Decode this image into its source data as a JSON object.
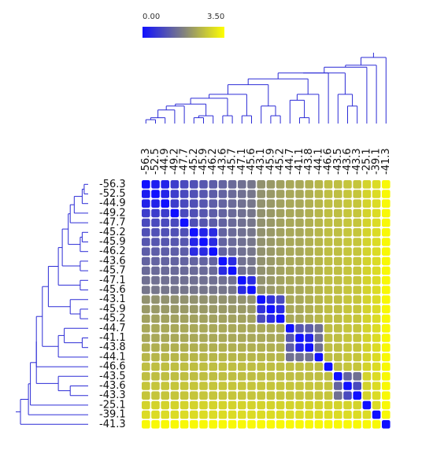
{
  "legend": {
    "min_label": "0.00",
    "max_label": "3.50",
    "color_low": "#1010ff",
    "color_mid": "#808080",
    "color_high": "#ffff00"
  },
  "chart_data": {
    "type": "heatmap",
    "title": "",
    "xlabel": "",
    "ylabel": "",
    "value_range": [
      0.0,
      3.5
    ],
    "dendrograms": true,
    "labels": [
      "-56.3",
      "-52.5",
      "-44.9",
      "-49.2",
      "-47.7",
      "-45.2",
      "-45.9",
      "-46.2",
      "-43.6",
      "-45.7",
      "-47.1",
      "-45.6",
      "-43.1",
      "-45.9",
      "-45.2",
      "-44.7",
      "-41.1",
      "-43.8",
      "-44.1",
      "-46.6",
      "-43.5",
      "-43.6",
      "-43.3",
      "-25.1",
      "-39.1",
      "-41.3"
    ],
    "values": [
      [
        0.0,
        0.2,
        0.3,
        0.7,
        0.9,
        1.0,
        1.1,
        1.2,
        1.3,
        1.4,
        1.5,
        1.6,
        2.0,
        2.1,
        2.2,
        2.3,
        2.3,
        2.4,
        2.5,
        2.6,
        2.6,
        2.7,
        2.7,
        2.9,
        3.0,
        3.4
      ],
      [
        0.2,
        0.0,
        0.3,
        0.7,
        0.9,
        1.0,
        1.1,
        1.2,
        1.3,
        1.4,
        1.5,
        1.6,
        2.0,
        2.1,
        2.2,
        2.3,
        2.3,
        2.4,
        2.5,
        2.6,
        2.6,
        2.7,
        2.7,
        2.9,
        3.0,
        3.4
      ],
      [
        0.3,
        0.3,
        0.0,
        0.7,
        0.9,
        1.0,
        1.1,
        1.2,
        1.3,
        1.4,
        1.5,
        1.6,
        2.0,
        2.1,
        2.2,
        2.3,
        2.3,
        2.4,
        2.5,
        2.6,
        2.6,
        2.7,
        2.7,
        2.9,
        3.0,
        3.4
      ],
      [
        0.7,
        0.7,
        0.7,
        0.0,
        0.9,
        1.0,
        1.1,
        1.2,
        1.3,
        1.4,
        1.5,
        1.6,
        2.0,
        2.1,
        2.2,
        2.3,
        2.3,
        2.4,
        2.5,
        2.6,
        2.6,
        2.7,
        2.7,
        2.9,
        3.0,
        3.4
      ],
      [
        0.9,
        0.9,
        0.9,
        0.9,
        0.0,
        1.0,
        1.1,
        1.2,
        1.3,
        1.4,
        1.5,
        1.6,
        2.0,
        2.1,
        2.2,
        2.3,
        2.3,
        2.4,
        2.5,
        2.6,
        2.6,
        2.7,
        2.7,
        2.9,
        3.0,
        3.4
      ],
      [
        1.0,
        1.0,
        1.0,
        1.0,
        1.0,
        0.0,
        0.3,
        0.4,
        1.3,
        1.4,
        1.5,
        1.6,
        2.0,
        2.1,
        2.2,
        2.3,
        2.3,
        2.4,
        2.5,
        2.6,
        2.6,
        2.7,
        2.7,
        2.9,
        3.0,
        3.4
      ],
      [
        1.1,
        1.1,
        1.1,
        1.1,
        1.1,
        0.3,
        0.0,
        0.4,
        1.3,
        1.4,
        1.5,
        1.6,
        2.0,
        2.1,
        2.2,
        2.3,
        2.3,
        2.4,
        2.5,
        2.6,
        2.6,
        2.7,
        2.7,
        2.9,
        3.0,
        3.4
      ],
      [
        1.2,
        1.2,
        1.2,
        1.2,
        1.2,
        0.4,
        0.4,
        0.0,
        1.3,
        1.4,
        1.5,
        1.6,
        2.0,
        2.1,
        2.2,
        2.3,
        2.3,
        2.4,
        2.5,
        2.6,
        2.6,
        2.7,
        2.7,
        2.9,
        3.0,
        3.4
      ],
      [
        1.3,
        1.3,
        1.3,
        1.3,
        1.3,
        1.3,
        1.3,
        1.3,
        0.0,
        0.4,
        1.5,
        1.6,
        2.0,
        2.1,
        2.2,
        2.3,
        2.3,
        2.4,
        2.5,
        2.6,
        2.6,
        2.7,
        2.7,
        2.9,
        3.0,
        3.4
      ],
      [
        1.4,
        1.4,
        1.4,
        1.4,
        1.4,
        1.4,
        1.4,
        1.4,
        0.4,
        0.0,
        1.5,
        1.6,
        2.0,
        2.1,
        2.2,
        2.3,
        2.3,
        2.4,
        2.5,
        2.6,
        2.6,
        2.7,
        2.7,
        2.9,
        3.0,
        3.4
      ],
      [
        1.5,
        1.5,
        1.5,
        1.5,
        1.5,
        1.5,
        1.5,
        1.5,
        1.5,
        1.5,
        0.0,
        0.4,
        2.0,
        2.1,
        2.2,
        2.3,
        2.3,
        2.4,
        2.5,
        2.6,
        2.6,
        2.7,
        2.7,
        2.9,
        3.0,
        3.4
      ],
      [
        1.6,
        1.6,
        1.6,
        1.6,
        1.6,
        1.6,
        1.6,
        1.6,
        1.6,
        1.6,
        0.4,
        0.0,
        2.0,
        2.1,
        2.2,
        2.3,
        2.3,
        2.4,
        2.5,
        2.6,
        2.6,
        2.7,
        2.7,
        2.9,
        3.0,
        3.4
      ],
      [
        2.0,
        2.0,
        2.0,
        2.0,
        2.0,
        2.0,
        2.0,
        2.0,
        2.0,
        2.0,
        2.0,
        2.0,
        0.0,
        0.5,
        0.9,
        2.3,
        2.3,
        2.4,
        2.5,
        2.6,
        2.6,
        2.7,
        2.7,
        2.9,
        3.0,
        3.4
      ],
      [
        2.1,
        2.1,
        2.1,
        2.1,
        2.1,
        2.1,
        2.1,
        2.1,
        2.1,
        2.1,
        2.1,
        2.1,
        0.5,
        0.0,
        0.4,
        2.3,
        2.3,
        2.4,
        2.5,
        2.6,
        2.6,
        2.7,
        2.7,
        2.9,
        3.0,
        3.4
      ],
      [
        2.2,
        2.2,
        2.2,
        2.2,
        2.2,
        2.2,
        2.2,
        2.2,
        2.2,
        2.2,
        2.2,
        2.2,
        0.9,
        0.4,
        0.0,
        2.3,
        2.3,
        2.4,
        2.5,
        2.6,
        2.6,
        2.7,
        2.7,
        2.9,
        3.0,
        3.4
      ],
      [
        2.3,
        2.3,
        2.3,
        2.3,
        2.3,
        2.3,
        2.3,
        2.3,
        2.3,
        2.3,
        2.3,
        2.3,
        2.3,
        2.3,
        2.3,
        0.0,
        1.1,
        1.2,
        1.5,
        2.6,
        2.6,
        2.7,
        2.7,
        2.9,
        3.0,
        3.4
      ],
      [
        2.3,
        2.3,
        2.3,
        2.3,
        2.3,
        2.3,
        2.3,
        2.3,
        2.3,
        2.3,
        2.3,
        2.3,
        2.3,
        2.3,
        2.3,
        1.1,
        0.0,
        0.3,
        1.5,
        2.6,
        2.6,
        2.7,
        2.7,
        2.9,
        3.0,
        3.4
      ],
      [
        2.4,
        2.4,
        2.4,
        2.4,
        2.4,
        2.4,
        2.4,
        2.4,
        2.4,
        2.4,
        2.4,
        2.4,
        2.4,
        2.4,
        2.4,
        1.2,
        0.3,
        0.0,
        1.5,
        2.6,
        2.6,
        2.7,
        2.7,
        2.9,
        3.0,
        3.4
      ],
      [
        2.5,
        2.5,
        2.5,
        2.5,
        2.5,
        2.5,
        2.5,
        2.5,
        2.5,
        2.5,
        2.5,
        2.5,
        2.5,
        2.5,
        2.5,
        1.5,
        1.5,
        1.5,
        0.0,
        2.6,
        2.6,
        2.7,
        2.7,
        2.9,
        3.0,
        3.4
      ],
      [
        2.6,
        2.6,
        2.6,
        2.6,
        2.6,
        2.6,
        2.6,
        2.6,
        2.6,
        2.6,
        2.6,
        2.6,
        2.6,
        2.6,
        2.6,
        2.6,
        2.6,
        2.6,
        2.6,
        0.0,
        2.6,
        2.7,
        2.7,
        2.9,
        3.0,
        3.4
      ],
      [
        2.6,
        2.6,
        2.6,
        2.6,
        2.6,
        2.6,
        2.6,
        2.6,
        2.6,
        2.6,
        2.6,
        2.6,
        2.6,
        2.6,
        2.6,
        2.6,
        2.6,
        2.6,
        2.6,
        2.6,
        0.0,
        1.3,
        1.5,
        2.9,
        3.0,
        3.4
      ],
      [
        2.7,
        2.7,
        2.7,
        2.7,
        2.7,
        2.7,
        2.7,
        2.7,
        2.7,
        2.7,
        2.7,
        2.7,
        2.7,
        2.7,
        2.7,
        2.7,
        2.7,
        2.7,
        2.7,
        2.7,
        1.3,
        0.0,
        0.9,
        2.9,
        3.0,
        3.4
      ],
      [
        2.7,
        2.7,
        2.7,
        2.7,
        2.7,
        2.7,
        2.7,
        2.7,
        2.7,
        2.7,
        2.7,
        2.7,
        2.7,
        2.7,
        2.7,
        2.7,
        2.7,
        2.7,
        2.7,
        2.7,
        1.5,
        0.9,
        0.0,
        2.9,
        3.0,
        3.4
      ],
      [
        2.9,
        2.9,
        2.9,
        2.9,
        2.9,
        2.9,
        2.9,
        2.9,
        2.9,
        2.9,
        2.9,
        2.9,
        2.9,
        2.9,
        2.9,
        2.9,
        2.9,
        2.9,
        2.9,
        2.9,
        2.9,
        2.9,
        2.9,
        0.0,
        3.0,
        3.4
      ],
      [
        3.0,
        3.0,
        3.0,
        3.0,
        3.0,
        3.0,
        3.0,
        3.0,
        3.0,
        3.0,
        3.0,
        3.0,
        3.0,
        3.0,
        3.0,
        3.0,
        3.0,
        3.0,
        3.0,
        3.0,
        3.0,
        3.0,
        3.0,
        3.0,
        0.0,
        3.4
      ],
      [
        3.4,
        3.4,
        3.4,
        3.4,
        3.4,
        3.4,
        3.4,
        3.4,
        3.4,
        3.4,
        3.4,
        3.4,
        3.4,
        3.4,
        3.4,
        3.4,
        3.4,
        3.4,
        3.4,
        3.4,
        3.4,
        3.4,
        3.4,
        3.4,
        3.4,
        0.0
      ]
    ],
    "dendrogram": {
      "merges": [
        [
          0,
          1,
          0.2
        ],
        [
          26,
          2,
          0.3
        ],
        [
          27,
          3,
          0.7
        ],
        [
          28,
          4,
          0.9
        ],
        [
          5,
          6,
          0.3
        ],
        [
          30,
          7,
          0.4
        ],
        [
          29,
          31,
          1.0
        ],
        [
          8,
          9,
          0.4
        ],
        [
          32,
          33,
          1.3
        ],
        [
          10,
          11,
          0.4
        ],
        [
          34,
          35,
          1.5
        ],
        [
          13,
          14,
          0.4
        ],
        [
          12,
          37,
          0.9
        ],
        [
          36,
          38,
          2.0
        ],
        [
          16,
          17,
          0.3
        ],
        [
          15,
          40,
          1.2
        ],
        [
          41,
          18,
          1.5
        ],
        [
          39,
          42,
          2.3
        ],
        [
          43,
          19,
          2.6
        ],
        [
          21,
          22,
          0.9
        ],
        [
          20,
          45,
          1.5
        ],
        [
          44,
          46,
          2.6
        ],
        [
          47,
          23,
          2.9
        ],
        [
          48,
          24,
          3.0
        ],
        [
          49,
          25,
          3.4
        ]
      ]
    }
  }
}
